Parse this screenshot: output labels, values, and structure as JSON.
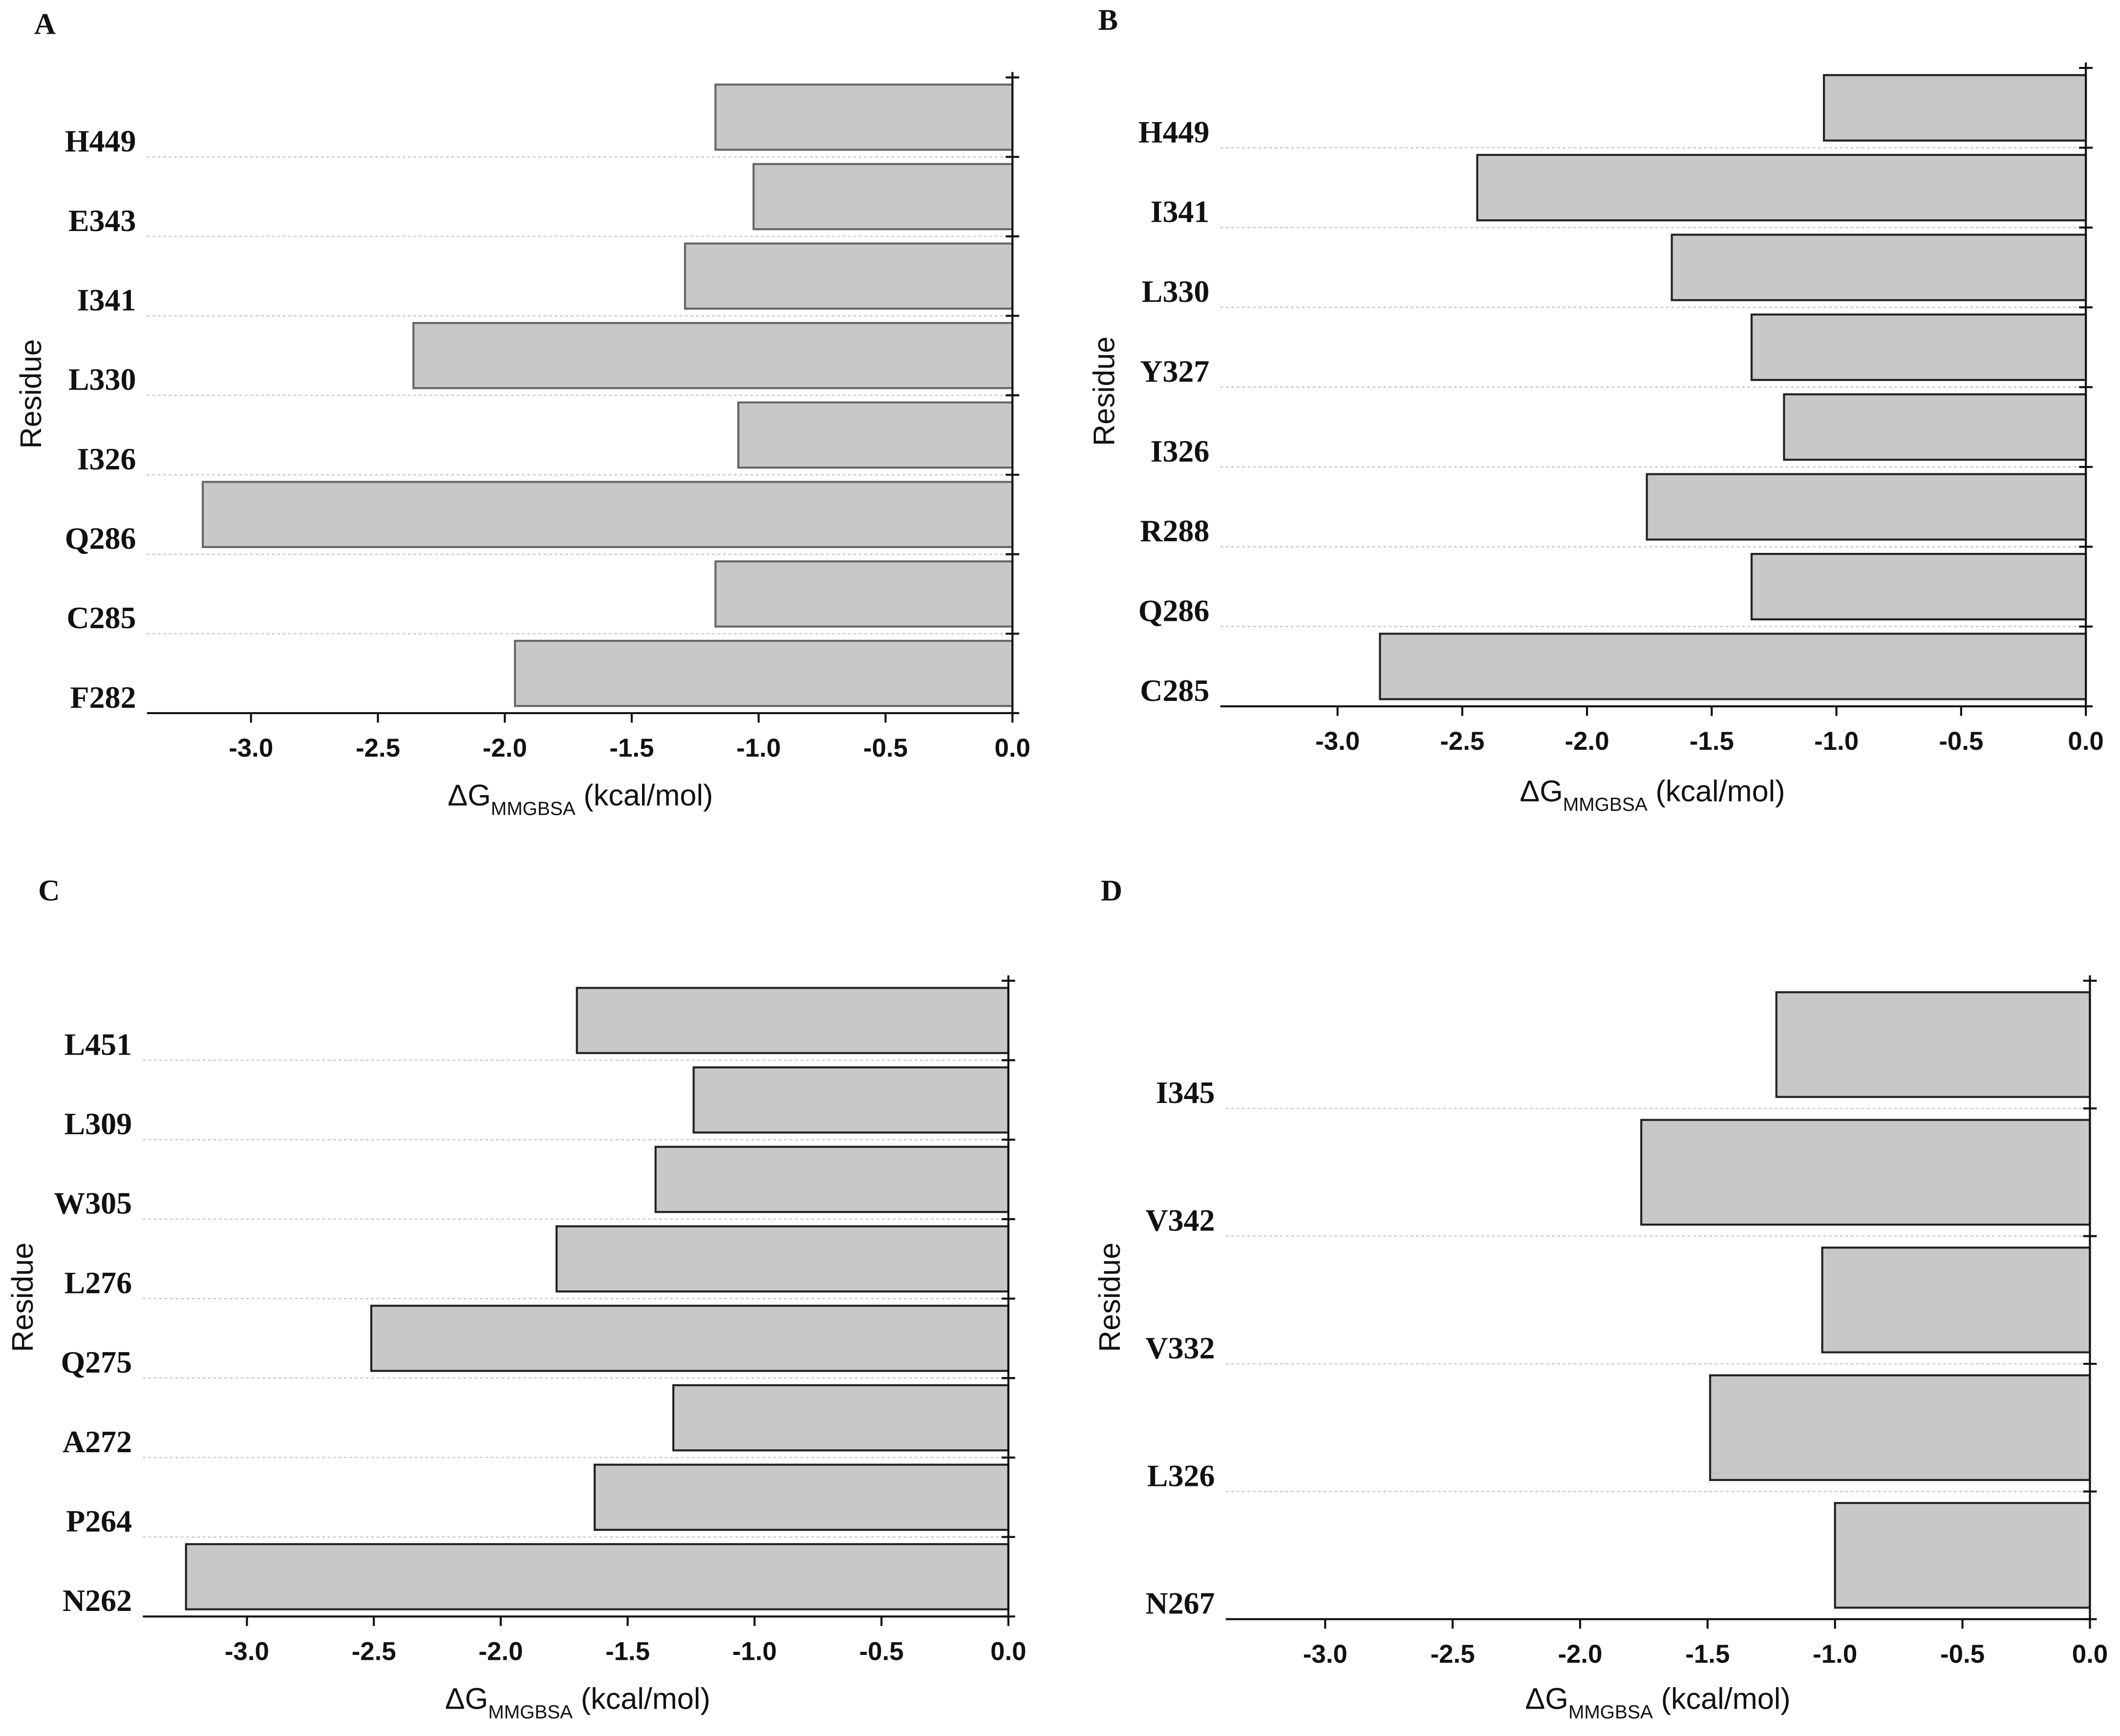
{
  "chart_data": [
    {
      "type": "bar",
      "orientation": "horizontal",
      "panel_label": "A",
      "ylabel": "Residue",
      "xlabel": {
        "main": "ΔG",
        "sub": "MMGBSA",
        "unit": "(kcal/mol)"
      },
      "categories": [
        "H449",
        "E343",
        "I341",
        "L330",
        "I326",
        "Q286",
        "C285",
        "F282"
      ],
      "values": [
        -1.17,
        -1.02,
        -1.29,
        -2.36,
        -1.08,
        -3.19,
        -1.17,
        -1.96
      ],
      "color": "#c8c8c8",
      "edgecolor": "#666666",
      "xlim": [
        -3.41,
        0
      ],
      "xticks": [
        {
          "value": -3,
          "label": "-3.0"
        },
        -2.5,
        {
          "value": -2,
          "label": "-2.0"
        },
        -1.5,
        {
          "value": -1,
          "label": "-1.0"
        },
        -0.5,
        {
          "value": 0,
          "label": "0.0"
        }
      ]
    },
    {
      "type": "bar",
      "orientation": "horizontal",
      "panel_label": "B",
      "ylabel": "Residue",
      "xlabel": {
        "main": "ΔG",
        "sub": "MMGBSA",
        "unit": "(kcal/mol)"
      },
      "categories": [
        "H449",
        "I341",
        "L330",
        "Y327",
        "I326",
        "R288",
        "Q286",
        "C285"
      ],
      "values": [
        -1.05,
        -2.44,
        -1.66,
        -1.34,
        -1.21,
        -1.76,
        -1.34,
        -2.83
      ],
      "color": "#c8c8c8",
      "edgecolor": "#222222",
      "xlim": [
        -3.47,
        0
      ],
      "xticks": [
        {
          "value": -3,
          "label": "-3.0"
        },
        -2.5,
        {
          "value": -2,
          "label": "-2.0"
        },
        -1.5,
        {
          "value": -1,
          "label": "-1.0"
        },
        -0.5,
        {
          "value": 0,
          "label": "0.0"
        }
      ]
    },
    {
      "type": "bar",
      "orientation": "horizontal",
      "panel_label": "C",
      "ylabel": "Residue",
      "xlabel": {
        "main": "ΔG",
        "sub": "MMGBSA",
        "unit": "(kcal/mol)"
      },
      "categories": [
        "L451",
        "L309",
        "W305",
        "L276",
        "Q275",
        "A272",
        "P264",
        "N262"
      ],
      "values": [
        -1.7,
        -1.24,
        -1.39,
        -1.78,
        -2.51,
        -1.32,
        -1.63,
        -3.24
      ],
      "color": "#c8c8c8",
      "edgecolor": "#222222",
      "xlim": [
        -3.41,
        0
      ],
      "xticks": [
        {
          "value": -3,
          "label": "-3.0"
        },
        -2.5,
        {
          "value": -2,
          "label": "-2.0"
        },
        -1.5,
        {
          "value": -1,
          "label": "-1.0"
        },
        -0.5,
        {
          "value": 0,
          "label": "0.0"
        }
      ]
    },
    {
      "type": "bar",
      "orientation": "horizontal",
      "panel_label": "D",
      "ylabel": "Residue",
      "xlabel": {
        "main": "ΔG",
        "sub": "MMGBSA",
        "unit": "(kcal/mol)"
      },
      "categories": [
        "I345",
        "V342",
        "V332",
        "L326",
        "N267"
      ],
      "values": [
        -1.23,
        -1.76,
        -1.05,
        -1.49,
        -1.0
      ],
      "color": "#c8c8c8",
      "edgecolor": "#222222",
      "xlim": [
        -3.39,
        0
      ],
      "xticks": [
        {
          "value": -3,
          "label": "-3.0"
        },
        -2.5,
        {
          "value": -2,
          "label": "-2.0"
        },
        -1.5,
        {
          "value": -1,
          "label": "-1.0"
        },
        -0.5,
        {
          "value": 0,
          "label": "0.0"
        }
      ]
    }
  ]
}
